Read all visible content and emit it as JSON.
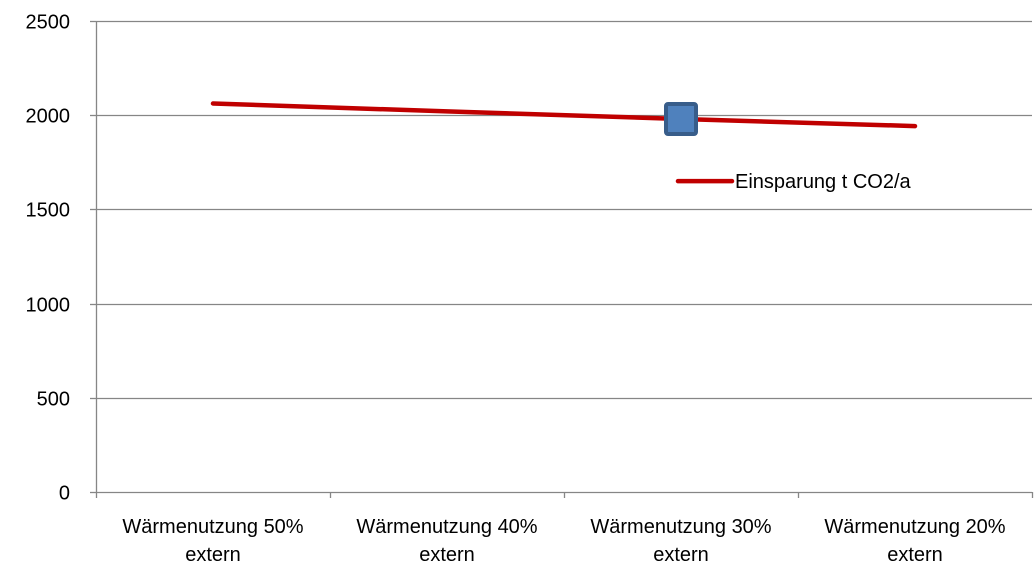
{
  "chart_data": {
    "type": "line",
    "categories": [
      [
        "Wärmenutzung 50%",
        "extern"
      ],
      [
        "Wärmenutzung 40%",
        "extern"
      ],
      [
        "Wärmenutzung 30%",
        "extern"
      ],
      [
        "Wärmenutzung 20%",
        "extern"
      ]
    ],
    "series": [
      {
        "name": "Einsparung t CO2/a",
        "values": [
          2062,
          2020,
          1980,
          1942
        ],
        "color": "#C00000"
      }
    ],
    "ylim": [
      0,
      2500
    ],
    "yticks": [
      0,
      500,
      1000,
      1500,
      2000,
      2500
    ],
    "grid": true,
    "legend": "right",
    "marker": {
      "category_index": 2,
      "value": 1980,
      "shape": "square",
      "fill": "#4F81BD",
      "stroke": "#385D8A"
    },
    "title": "",
    "xlabel": "",
    "ylabel": ""
  }
}
